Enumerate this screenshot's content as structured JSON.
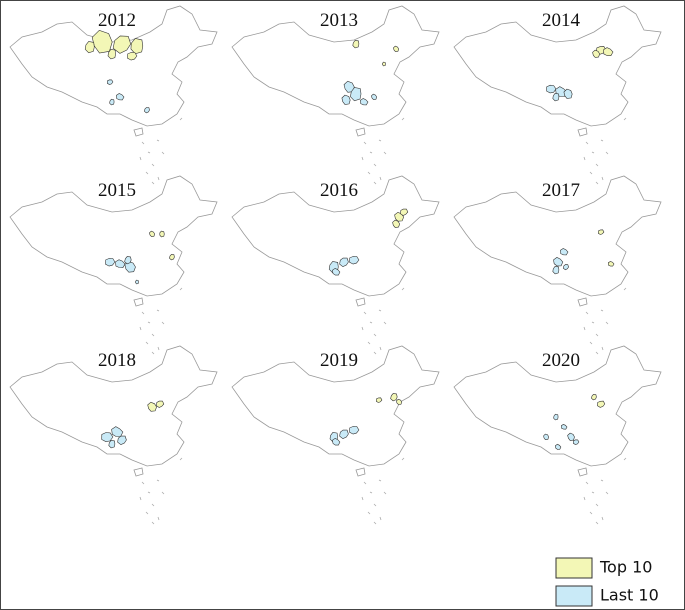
{
  "panels": [
    {
      "year": "2012"
    },
    {
      "year": "2013"
    },
    {
      "year": "2014"
    },
    {
      "year": "2015"
    },
    {
      "year": "2016"
    },
    {
      "year": "2017"
    },
    {
      "year": "2018"
    },
    {
      "year": "2019"
    },
    {
      "year": "2020"
    }
  ],
  "legend": {
    "items": [
      {
        "label": "Top 10"
      },
      {
        "label": "Last 10"
      }
    ]
  }
}
